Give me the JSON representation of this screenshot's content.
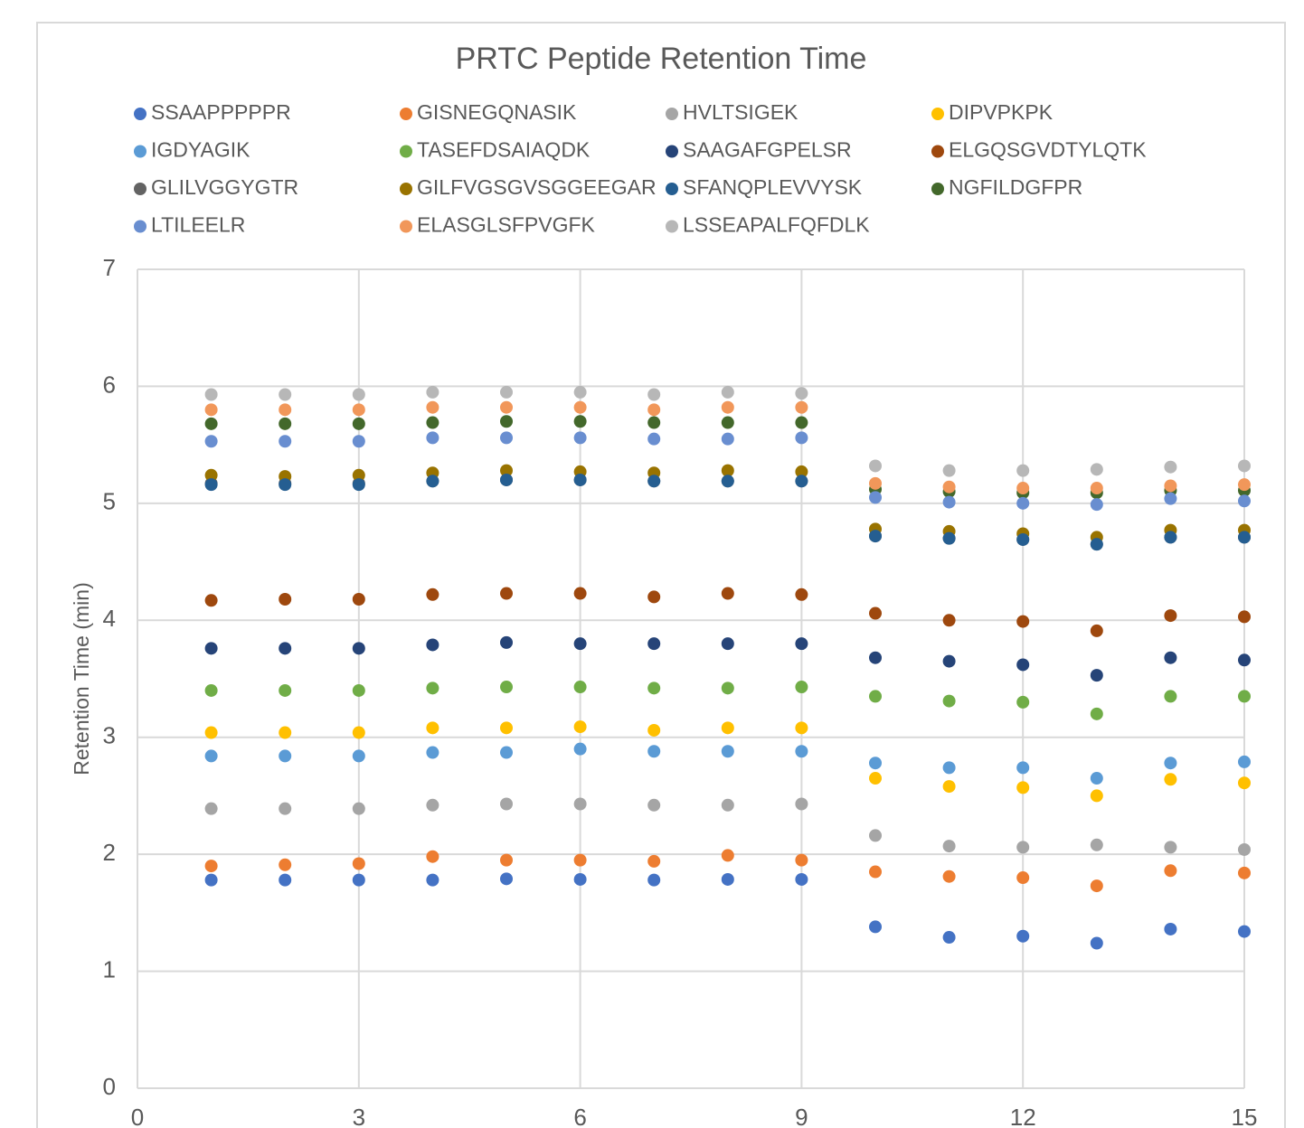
{
  "chart_data": {
    "type": "scatter",
    "title": "PRTC Peptide Retention Time",
    "y_label": "Retention Time (min)",
    "x": [
      1,
      2,
      3,
      4,
      5,
      6,
      7,
      8,
      9,
      10,
      11,
      12,
      13,
      14,
      15
    ],
    "xlim": [
      0,
      15
    ],
    "xticks": [
      0,
      3,
      6,
      9,
      12,
      15
    ],
    "ylim": [
      0,
      7
    ],
    "yticks": [
      0,
      1,
      2,
      3,
      4,
      5,
      6,
      7
    ],
    "grid": true,
    "legend": "top",
    "series": [
      {
        "name": "SSAAPPPPPR",
        "color": "#4472c4",
        "values": [
          1.78,
          1.78,
          1.78,
          1.78,
          1.79,
          1.785,
          1.78,
          1.785,
          1.785,
          1.38,
          1.29,
          1.3,
          1.24,
          1.36,
          1.34
        ]
      },
      {
        "name": "GISNEGQNASIK",
        "color": "#ed7d31",
        "values": [
          1.9,
          1.91,
          1.92,
          1.98,
          1.95,
          1.95,
          1.94,
          1.99,
          1.95,
          1.85,
          1.81,
          1.8,
          1.73,
          1.86,
          1.84
        ]
      },
      {
        "name": "HVLTSIGEK",
        "color": "#a5a5a5",
        "values": [
          2.39,
          2.39,
          2.39,
          2.42,
          2.43,
          2.43,
          2.42,
          2.42,
          2.43,
          2.16,
          2.07,
          2.06,
          2.08,
          2.06,
          2.04
        ]
      },
      {
        "name": "DIPVPKPK",
        "color": "#ffc000",
        "values": [
          3.04,
          3.04,
          3.04,
          3.08,
          3.08,
          3.09,
          3.06,
          3.08,
          3.08,
          2.65,
          2.58,
          2.57,
          2.5,
          2.64,
          2.61
        ]
      },
      {
        "name": "IGDYAGIK",
        "color": "#5b9bd5",
        "values": [
          2.84,
          2.84,
          2.84,
          2.87,
          2.87,
          2.9,
          2.88,
          2.88,
          2.88,
          2.78,
          2.74,
          2.74,
          2.65,
          2.78,
          2.79
        ]
      },
      {
        "name": "TASEFDSAIAQDK",
        "color": "#70ad47",
        "values": [
          3.4,
          3.4,
          3.4,
          3.42,
          3.43,
          3.43,
          3.42,
          3.42,
          3.43,
          3.35,
          3.31,
          3.3,
          3.2,
          3.35,
          3.35
        ]
      },
      {
        "name": "SAAGAFGPELSR",
        "color": "#264478",
        "values": [
          3.76,
          3.76,
          3.76,
          3.79,
          3.81,
          3.8,
          3.8,
          3.8,
          3.8,
          3.68,
          3.65,
          3.62,
          3.53,
          3.68,
          3.66
        ]
      },
      {
        "name": "ELGQSGVDTYLQTK",
        "color": "#9e480e",
        "values": [
          4.17,
          4.18,
          4.18,
          4.22,
          4.23,
          4.23,
          4.2,
          4.23,
          4.22,
          4.06,
          4.0,
          3.99,
          3.91,
          4.04,
          4.03
        ]
      },
      {
        "name": "GLILVGGYGTR",
        "color": "#636363",
        "values": [
          5.17,
          5.17,
          5.17,
          5.19,
          5.2,
          5.2,
          5.19,
          5.19,
          5.19,
          4.72,
          4.7,
          4.69,
          4.65,
          4.71,
          4.71
        ]
      },
      {
        "name": "GILFVGSGVSGGEEGAR",
        "color": "#997300",
        "values": [
          5.24,
          5.23,
          5.24,
          5.26,
          5.28,
          5.27,
          5.26,
          5.28,
          5.27,
          4.78,
          4.76,
          4.74,
          4.71,
          4.77,
          4.77
        ]
      },
      {
        "name": "SFANQPLEVVYSK",
        "color": "#255e91",
        "values": [
          5.16,
          5.16,
          5.16,
          5.19,
          5.2,
          5.2,
          5.19,
          5.19,
          5.19,
          4.72,
          4.7,
          4.69,
          4.65,
          4.71,
          4.71
        ]
      },
      {
        "name": "NGFILDGFPR",
        "color": "#43682b",
        "values": [
          5.68,
          5.68,
          5.68,
          5.69,
          5.7,
          5.7,
          5.69,
          5.69,
          5.69,
          5.12,
          5.1,
          5.09,
          5.09,
          5.11,
          5.11
        ]
      },
      {
        "name": "LTILEELR",
        "color": "#698ed0",
        "values": [
          5.53,
          5.53,
          5.53,
          5.56,
          5.56,
          5.56,
          5.55,
          5.55,
          5.56,
          5.05,
          5.01,
          5.0,
          4.99,
          5.04,
          5.02
        ]
      },
      {
        "name": "ELASGLSFPVGFK",
        "color": "#f1975a",
        "values": [
          5.8,
          5.8,
          5.8,
          5.82,
          5.82,
          5.82,
          5.8,
          5.82,
          5.82,
          5.17,
          5.14,
          5.13,
          5.13,
          5.15,
          5.16
        ]
      },
      {
        "name": "LSSEAPALFQFDLK",
        "color": "#b7b7b7",
        "values": [
          5.93,
          5.93,
          5.93,
          5.95,
          5.95,
          5.95,
          5.93,
          5.95,
          5.94,
          5.32,
          5.28,
          5.28,
          5.29,
          5.31,
          5.32
        ]
      }
    ]
  }
}
